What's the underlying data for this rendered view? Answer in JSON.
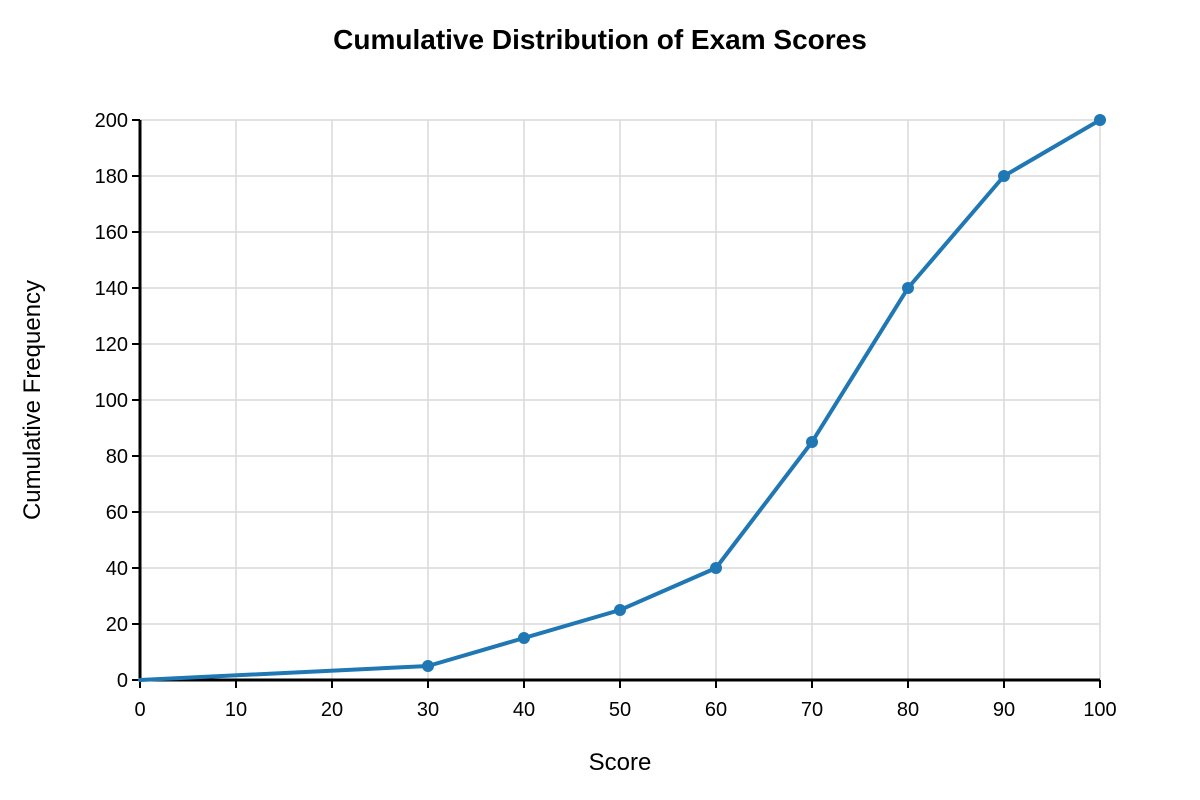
{
  "chart_data": {
    "type": "line",
    "title": "Cumulative Distribution of Exam Scores",
    "xlabel": "Score",
    "ylabel": "Cumulative Frequency",
    "xlim": [
      0,
      100
    ],
    "ylim": [
      0,
      200
    ],
    "xticks": [
      0,
      10,
      20,
      30,
      40,
      50,
      60,
      70,
      80,
      90,
      100
    ],
    "yticks": [
      0,
      20,
      40,
      60,
      80,
      100,
      120,
      140,
      160,
      180,
      200
    ],
    "grid": true,
    "legend": "none",
    "series": [
      {
        "color": "#1f77b4",
        "x": [
          0,
          30,
          40,
          50,
          60,
          70,
          80,
          90,
          100
        ],
        "y": [
          0,
          5,
          15,
          25,
          40,
          85,
          140,
          180,
          200
        ]
      }
    ]
  }
}
